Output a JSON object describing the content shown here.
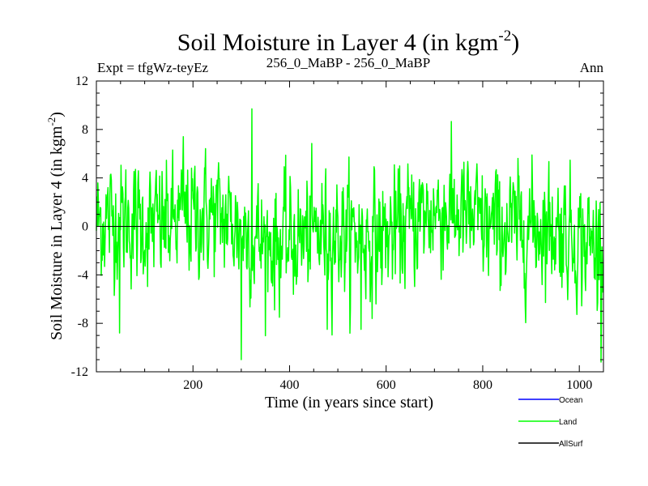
{
  "chart_data": {
    "type": "line",
    "title": "Soil Moisture in Layer 4 (in kgm",
    "title_superscript": "-2",
    "title_suffix": ")",
    "subtitle_left": "Expt = tfgWz-teyEz",
    "subtitle_center": "256_0_MaBP - 256_0_MaBP",
    "subtitle_right": "Ann",
    "xlabel": "Time (in years since start)",
    "ylabel": "Soil Moisture in Layer 4 (in kgm",
    "ylabel_superscript": "-2",
    "ylabel_suffix": ")",
    "xlim": [
      0,
      1050
    ],
    "ylim": [
      -12,
      12
    ],
    "x_ticks": [
      200,
      400,
      600,
      800,
      1000
    ],
    "y_ticks": [
      -12,
      -8,
      -4,
      0,
      4,
      8,
      12
    ],
    "zero_line": true,
    "legend": [
      {
        "name": "Ocean",
        "color": "#0000ff"
      },
      {
        "name": "Land",
        "color": "#00ff00"
      },
      {
        "name": "AllSurf",
        "color": "#000000"
      }
    ],
    "series": [
      {
        "name": "Land",
        "color": "#00ff00",
        "x_start": 0,
        "x_step": 1,
        "count": 1050,
        "mean": -0.2,
        "std": 2.9,
        "autocorrelation": 0.3,
        "annotated_extrema": [
          {
            "x": 300,
            "y": -11.0
          },
          {
            "x": 322,
            "y": 9.7
          },
          {
            "x": 180,
            "y": 7.4
          },
          {
            "x": 48,
            "y": -8.8
          },
          {
            "x": 478,
            "y": -8.5
          },
          {
            "x": 548,
            "y": -8.5
          }
        ]
      }
    ]
  }
}
